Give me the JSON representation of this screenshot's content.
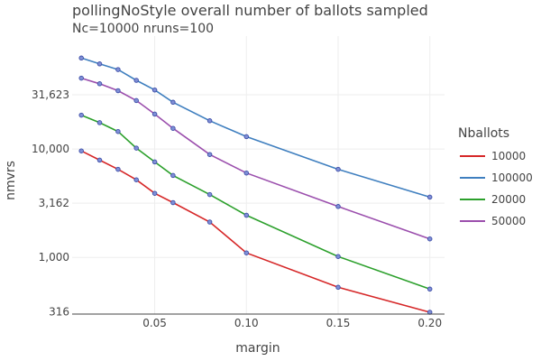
{
  "chart_data": {
    "type": "line",
    "title": "pollingNoStyle overall number of ballots sampled",
    "subtitle": "Nc=10000 nruns=100",
    "xlabel": "margin",
    "ylabel": "nmvrs",
    "y_scale": "log",
    "xlim": [
      0.005,
      0.208
    ],
    "ylim": [
      300,
      110000
    ],
    "x_ticks": [
      0.05,
      0.1,
      0.15,
      0.2
    ],
    "x_tick_labels": [
      "0.05",
      "0.10",
      "0.15",
      "0.20"
    ],
    "y_ticks": [
      316,
      1000,
      3162,
      10000,
      31623
    ],
    "y_tick_labels": [
      "316",
      "1,000",
      "3,162",
      "10,000",
      "31,623"
    ],
    "grid": true,
    "legend_title": "Nballots",
    "legend_position": "right",
    "x": [
      0.01,
      0.02,
      0.03,
      0.04,
      0.05,
      0.06,
      0.08,
      0.1,
      0.15,
      0.2
    ],
    "series": [
      {
        "name": "10000",
        "color": "#d62728",
        "values": [
          9600,
          7900,
          6500,
          5200,
          3900,
          3200,
          2120,
          1100,
          530,
          312
        ]
      },
      {
        "name": "100000",
        "color": "#3f7fbf",
        "values": [
          69000,
          61000,
          54000,
          43000,
          35000,
          27000,
          18200,
          13000,
          6500,
          3600
        ]
      },
      {
        "name": "20000",
        "color": "#2ca02c",
        "values": [
          20500,
          17500,
          14500,
          10200,
          7600,
          5700,
          3800,
          2450,
          1020,
          510
        ]
      },
      {
        "name": "50000",
        "color": "#9b4fad",
        "values": [
          45000,
          40000,
          34500,
          28000,
          21000,
          15500,
          8900,
          6000,
          2950,
          1480
        ]
      }
    ]
  }
}
